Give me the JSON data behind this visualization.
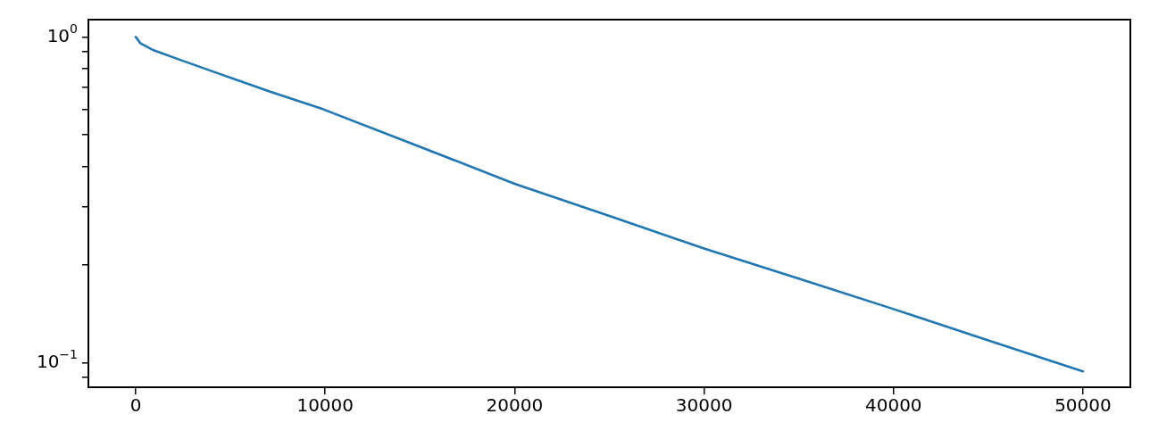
{
  "chart_data": {
    "type": "line",
    "log": "y",
    "grid": false,
    "legend": false,
    "marker": "none",
    "line_style": "solid",
    "xlim": [
      -2500,
      52500
    ],
    "xticks": [
      0,
      10000,
      20000,
      30000,
      40000,
      50000
    ],
    "ylim": [
      0.084,
      1.13
    ],
    "yticks": [
      {
        "value": 0.09,
        "label": null
      },
      {
        "value": 0.1,
        "label": "10$^{−1}$"
      },
      {
        "value": 0.2,
        "label": null
      },
      {
        "value": 0.3,
        "label": null
      },
      {
        "value": 0.4,
        "label": null
      },
      {
        "value": 0.5,
        "label": null
      },
      {
        "value": 0.6,
        "label": null
      },
      {
        "value": 0.7,
        "label": null
      },
      {
        "value": 0.8,
        "label": null
      },
      {
        "value": 0.9,
        "label": null
      },
      {
        "value": 1,
        "label": "10$^{0}$"
      }
    ],
    "series": [
      {
        "color": "#1f77b4",
        "x": [
          0,
          235,
          940,
          2350,
          4700,
          7060,
          9880,
          15000,
          20000,
          25000,
          30000,
          35000,
          40000,
          45000,
          50000
        ],
        "values": [
          1,
          0.957,
          0.91,
          0.85,
          0.76,
          0.68,
          0.6,
          0.46,
          0.354,
          0.282,
          0.224,
          0.181,
          0.146,
          0.117,
          0.094
        ]
      }
    ]
  }
}
